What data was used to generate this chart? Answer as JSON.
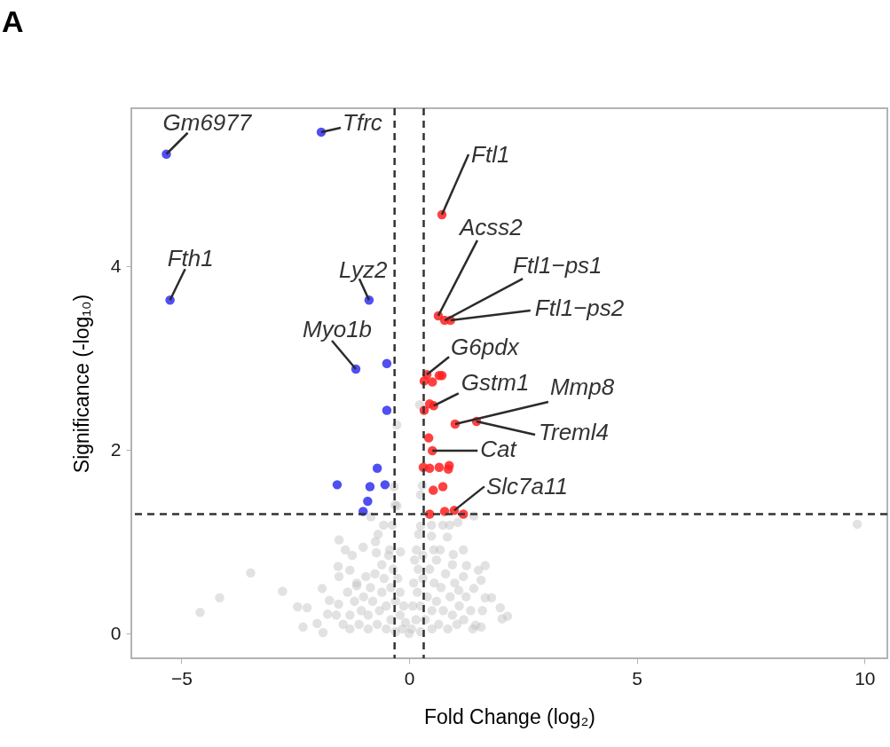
{
  "chart_data": {
    "type": "scatter",
    "title": "A",
    "xlabel": "Fold Change (log₂)",
    "ylabel": "Significance (-log₁₀)",
    "xlim": [
      -6.1,
      10.5
    ],
    "ylim": [
      -0.27,
      5.72
    ],
    "xticks": [
      -5,
      0,
      5,
      10
    ],
    "yticks": [
      0,
      2,
      4
    ],
    "grid": false,
    "marker": "circle",
    "series": [
      {
        "color": "#bebebe",
        "x": [
          -4.59,
          -4.16,
          -3.48,
          -2.78,
          -2.45,
          -2.24,
          -2.33,
          -2.02,
          -1.89,
          -1.91,
          -1.54,
          -1.4,
          -1.25,
          -1.56,
          -1.01,
          -0.84,
          -0.68,
          -0.74,
          -0.56,
          -0.37,
          -0.27,
          -0.72,
          -0.43,
          -0.19,
          -1.75,
          -1.79,
          -1.3,
          -1.15,
          -1.54,
          0.21,
          0.25,
          0.49,
          0.74,
          0.89,
          1.07,
          1.42,
          0.49,
          0.84,
          0.54,
          0.97,
          1.19,
          1.26,
          1.52,
          1.67,
          1.58,
          1.42,
          1.67,
          1.81,
          2.0,
          2.16,
          2.04,
          1.61,
          1.46,
          1.58,
          1.09,
          1.19,
          0.68,
          0.16,
          9.84,
          -0.27,
          -0.31,
          0.23,
          0.29,
          0.25,
          -0.33,
          -1.45,
          -1.3,
          -1.3,
          -1.2,
          -1.1,
          -1.05,
          -1.0,
          -0.9,
          -0.9,
          -0.85,
          -0.8,
          -0.75,
          -0.7,
          -0.65,
          -0.6,
          -0.6,
          -0.55,
          -0.5,
          -0.5,
          -0.45,
          -0.4,
          -0.4,
          -0.35,
          -0.3,
          -0.3,
          -0.25,
          -0.2,
          -0.2,
          -0.15,
          -0.12,
          -0.08,
          -1.6,
          -1.55,
          -1.35,
          -1.15,
          -0.95,
          0.0,
          0.05,
          0.08,
          0.1,
          0.12,
          0.15,
          0.18,
          0.2,
          0.25,
          0.25,
          0.3,
          0.3,
          0.35,
          0.4,
          0.45,
          0.5,
          0.5,
          0.55,
          0.6,
          0.65,
          0.7,
          0.75,
          0.8,
          0.85,
          0.9,
          0.95,
          1.0,
          1.05,
          1.1,
          1.2,
          1.25,
          1.35,
          1.4,
          0.95,
          0.6
        ],
        "values": [
          0.23,
          0.39,
          0.66,
          0.46,
          0.29,
          0.28,
          0.07,
          0.11,
          0.01,
          0.49,
          1.02,
          0.91,
          0.85,
          0.73,
          0.94,
          1.27,
          1.08,
          1.0,
          1.18,
          1.18,
          1.39,
          0.88,
          0.91,
          0.89,
          0.36,
          0.21,
          0.69,
          0.52,
          0.62,
          1.08,
          1.17,
          1.18,
          1.18,
          1.18,
          1.21,
          1.28,
          1.06,
          1.05,
          0.91,
          0.86,
          0.91,
          0.74,
          0.69,
          0.74,
          0.58,
          0.49,
          0.39,
          0.39,
          0.28,
          0.19,
          0.16,
          0.25,
          0.09,
          0.07,
          0.47,
          0.62,
          0.91,
          0.91,
          1.19,
          2.27,
          1.4,
          2.49,
          1.61,
          1.51,
          1.6,
          0.1,
          0.05,
          0.2,
          0.35,
          0.1,
          0.25,
          0.4,
          0.05,
          0.2,
          0.5,
          0.35,
          0.65,
          0.1,
          0.25,
          0.45,
          0.75,
          0.6,
          0.05,
          0.3,
          0.85,
          0.15,
          0.5,
          0.7,
          0.02,
          0.35,
          0.6,
          0.2,
          0.45,
          0.05,
          0.3,
          0.12,
          0.2,
          0.32,
          0.45,
          0.55,
          0.62,
          0.0,
          0.05,
          0.3,
          0.55,
          0.8,
          0.15,
          0.45,
          0.7,
          0.02,
          0.3,
          0.6,
          0.85,
          0.15,
          0.4,
          0.7,
          0.05,
          0.25,
          0.55,
          0.35,
          0.1,
          0.5,
          0.25,
          0.65,
          0.05,
          0.4,
          0.2,
          0.55,
          0.1,
          0.3,
          0.15,
          0.4,
          0.25,
          0.05,
          0.75,
          0.8
        ]
      },
      {
        "color": "#3030f0",
        "x": [
          -5.33,
          -1.93,
          -5.25,
          -0.88,
          -1.17,
          -0.49,
          -0.49,
          -0.7,
          -1.58,
          -0.86,
          -0.53,
          -0.91,
          -1.01
        ],
        "values": [
          5.22,
          5.46,
          3.63,
          3.63,
          2.88,
          2.94,
          2.43,
          1.8,
          1.62,
          1.6,
          1.62,
          1.44,
          1.33
        ]
      },
      {
        "color": "#ff2020",
        "x": [
          0.72,
          0.64,
          0.78,
          0.91,
          0.39,
          0.33,
          0.51,
          0.66,
          0.72,
          0.45,
          0.54,
          0.33,
          1.01,
          1.48,
          0.43,
          0.51,
          0.31,
          0.45,
          0.66,
          0.88,
          0.86,
          0.74,
          0.53,
          0.45,
          0.78,
          0.99,
          1.19
        ],
        "values": [
          4.56,
          3.46,
          3.41,
          3.41,
          2.82,
          2.75,
          2.74,
          2.81,
          2.81,
          2.5,
          2.48,
          2.43,
          2.28,
          2.31,
          2.13,
          1.99,
          1.81,
          1.8,
          1.81,
          1.83,
          1.79,
          1.6,
          1.56,
          1.3,
          1.33,
          1.34,
          1.3
        ]
      }
    ],
    "ref_lines": [
      {
        "axis": "x",
        "value": -0.32,
        "color": "#333333",
        "line_style": "dashed"
      },
      {
        "axis": "x",
        "value": 0.32,
        "color": "#333333",
        "line_style": "dashed"
      },
      {
        "axis": "y",
        "value": 1.3,
        "color": "#333333",
        "line_style": "dashed"
      }
    ],
    "annotations": [
      {
        "text": "Gm6977",
        "x": -5.33,
        "y": 5.22
      },
      {
        "text": "Tfrc",
        "x": -1.93,
        "y": 5.46
      },
      {
        "text": "Fth1",
        "x": -5.25,
        "y": 3.63
      },
      {
        "text": "Lyz2",
        "x": -0.88,
        "y": 3.63
      },
      {
        "text": "Myo1b",
        "x": -1.17,
        "y": 2.88
      },
      {
        "text": "Ftl1",
        "x": 0.72,
        "y": 4.56
      },
      {
        "text": "Acss2",
        "x": 0.64,
        "y": 3.46
      },
      {
        "text": "Ftl1−ps1",
        "x": 0.78,
        "y": 3.41
      },
      {
        "text": "Ftl1−ps2",
        "x": 0.91,
        "y": 3.41
      },
      {
        "text": "G6pdx",
        "x": 0.39,
        "y": 2.82
      },
      {
        "text": "Gstm1",
        "x": 0.54,
        "y": 2.48
      },
      {
        "text": "Mmp8",
        "x": 1.01,
        "y": 2.28
      },
      {
        "text": "Treml4",
        "x": 1.48,
        "y": 2.31
      },
      {
        "text": "Cat",
        "x": 0.51,
        "y": 1.99
      },
      {
        "text": "Slc7a11",
        "x": 0.99,
        "y": 1.34
      }
    ]
  }
}
